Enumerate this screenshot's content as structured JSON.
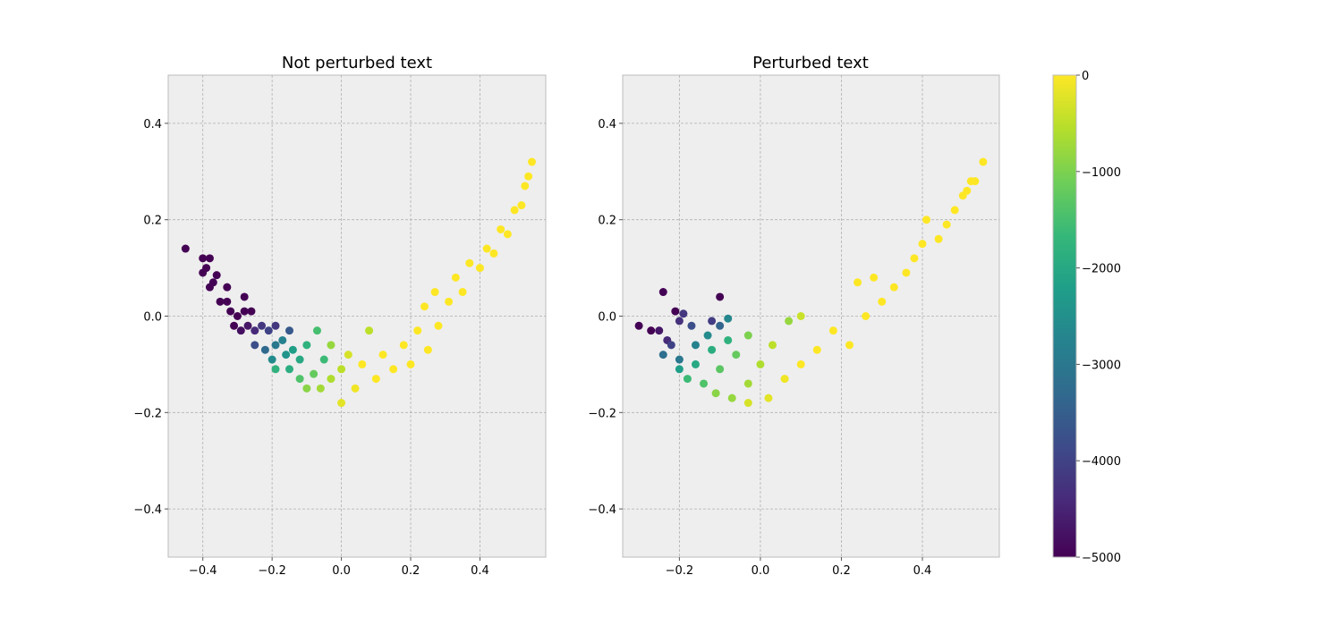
{
  "chart_data": [
    {
      "type": "scatter",
      "title": "Not perturbed text",
      "xlabel": "",
      "ylabel": "",
      "xlim": [
        -0.5,
        0.59
      ],
      "ylim": [
        -0.5,
        0.5
      ],
      "xticks": [
        -0.4,
        -0.2,
        0.0,
        0.2,
        0.4
      ],
      "yticks": [
        -0.4,
        -0.2,
        0.0,
        0.2,
        0.4
      ],
      "xtick_labels": [
        "−0.4",
        "−0.2",
        "0.0",
        "0.2",
        "0.4"
      ],
      "ytick_labels": [
        "−0.4",
        "−0.2",
        "0.0",
        "0.2",
        "0.4"
      ],
      "grid": true,
      "colormap": "viridis",
      "color_range": [
        -5000,
        0
      ],
      "points": [
        {
          "x": -0.45,
          "y": 0.14,
          "c": -5000
        },
        {
          "x": -0.4,
          "y": 0.12,
          "c": -5000
        },
        {
          "x": -0.38,
          "y": 0.12,
          "c": -5000
        },
        {
          "x": -0.39,
          "y": 0.1,
          "c": -5000
        },
        {
          "x": -0.4,
          "y": 0.09,
          "c": -5000
        },
        {
          "x": -0.36,
          "y": 0.085,
          "c": -5000
        },
        {
          "x": -0.37,
          "y": 0.07,
          "c": -5000
        },
        {
          "x": -0.38,
          "y": 0.06,
          "c": -5000
        },
        {
          "x": -0.33,
          "y": 0.06,
          "c": -5000
        },
        {
          "x": -0.35,
          "y": 0.03,
          "c": -5000
        },
        {
          "x": -0.33,
          "y": 0.03,
          "c": -5000
        },
        {
          "x": -0.28,
          "y": 0.04,
          "c": -5000
        },
        {
          "x": -0.32,
          "y": 0.01,
          "c": -5000
        },
        {
          "x": -0.3,
          "y": 0.0,
          "c": -5000
        },
        {
          "x": -0.28,
          "y": 0.01,
          "c": -5000
        },
        {
          "x": -0.26,
          "y": 0.01,
          "c": -5000
        },
        {
          "x": -0.31,
          "y": -0.02,
          "c": -5000
        },
        {
          "x": -0.29,
          "y": -0.03,
          "c": -4800
        },
        {
          "x": -0.27,
          "y": -0.02,
          "c": -4700
        },
        {
          "x": -0.25,
          "y": -0.03,
          "c": -4400
        },
        {
          "x": -0.23,
          "y": -0.02,
          "c": -4200
        },
        {
          "x": -0.21,
          "y": -0.03,
          "c": -4000
        },
        {
          "x": -0.19,
          "y": -0.02,
          "c": -4200
        },
        {
          "x": -0.15,
          "y": -0.03,
          "c": -3600
        },
        {
          "x": -0.25,
          "y": -0.06,
          "c": -3800
        },
        {
          "x": -0.22,
          "y": -0.07,
          "c": -3300
        },
        {
          "x": -0.19,
          "y": -0.06,
          "c": -3000
        },
        {
          "x": -0.17,
          "y": -0.05,
          "c": -2800
        },
        {
          "x": -0.2,
          "y": -0.09,
          "c": -2600
        },
        {
          "x": -0.16,
          "y": -0.08,
          "c": -2400
        },
        {
          "x": -0.14,
          "y": -0.07,
          "c": -2200
        },
        {
          "x": -0.19,
          "y": -0.11,
          "c": -1800
        },
        {
          "x": -0.15,
          "y": -0.11,
          "c": -1900
        },
        {
          "x": -0.12,
          "y": -0.09,
          "c": -2000
        },
        {
          "x": -0.1,
          "y": -0.06,
          "c": -1800
        },
        {
          "x": -0.07,
          "y": -0.03,
          "c": -1500
        },
        {
          "x": -0.12,
          "y": -0.13,
          "c": -1400
        },
        {
          "x": -0.08,
          "y": -0.12,
          "c": -1200
        },
        {
          "x": -0.05,
          "y": -0.09,
          "c": -1600
        },
        {
          "x": -0.03,
          "y": -0.06,
          "c": -800
        },
        {
          "x": -0.1,
          "y": -0.15,
          "c": -900
        },
        {
          "x": -0.06,
          "y": -0.15,
          "c": -700
        },
        {
          "x": -0.03,
          "y": -0.13,
          "c": -600
        },
        {
          "x": 0.0,
          "y": -0.11,
          "c": -500
        },
        {
          "x": 0.02,
          "y": -0.08,
          "c": -300
        },
        {
          "x": 0.0,
          "y": -0.18,
          "c": -200
        },
        {
          "x": 0.04,
          "y": -0.15,
          "c": -100
        },
        {
          "x": 0.08,
          "y": -0.03,
          "c": -500
        },
        {
          "x": 0.06,
          "y": -0.1,
          "c": 0
        },
        {
          "x": 0.1,
          "y": -0.13,
          "c": 0
        },
        {
          "x": 0.12,
          "y": -0.08,
          "c": 0
        },
        {
          "x": 0.15,
          "y": -0.11,
          "c": 0
        },
        {
          "x": 0.18,
          "y": -0.06,
          "c": 0
        },
        {
          "x": 0.2,
          "y": -0.1,
          "c": 0
        },
        {
          "x": 0.22,
          "y": -0.03,
          "c": 0
        },
        {
          "x": 0.25,
          "y": -0.07,
          "c": 0
        },
        {
          "x": 0.24,
          "y": 0.02,
          "c": 0
        },
        {
          "x": 0.28,
          "y": -0.02,
          "c": 0
        },
        {
          "x": 0.27,
          "y": 0.05,
          "c": 0
        },
        {
          "x": 0.31,
          "y": 0.03,
          "c": 0
        },
        {
          "x": 0.33,
          "y": 0.08,
          "c": 0
        },
        {
          "x": 0.35,
          "y": 0.05,
          "c": 0
        },
        {
          "x": 0.37,
          "y": 0.11,
          "c": 0
        },
        {
          "x": 0.4,
          "y": 0.1,
          "c": 0
        },
        {
          "x": 0.42,
          "y": 0.14,
          "c": 0
        },
        {
          "x": 0.44,
          "y": 0.13,
          "c": 0
        },
        {
          "x": 0.46,
          "y": 0.18,
          "c": 0
        },
        {
          "x": 0.48,
          "y": 0.17,
          "c": 0
        },
        {
          "x": 0.5,
          "y": 0.22,
          "c": 0
        },
        {
          "x": 0.52,
          "y": 0.23,
          "c": 0
        },
        {
          "x": 0.53,
          "y": 0.27,
          "c": 0
        },
        {
          "x": 0.54,
          "y": 0.29,
          "c": 0
        },
        {
          "x": 0.55,
          "y": 0.32,
          "c": 0
        }
      ]
    },
    {
      "type": "scatter",
      "title": "Perturbed text",
      "xlabel": "",
      "ylabel": "",
      "xlim": [
        -0.34,
        0.59
      ],
      "ylim": [
        -0.5,
        0.5
      ],
      "xticks": [
        -0.2,
        0.0,
        0.2,
        0.4
      ],
      "yticks": [
        -0.4,
        -0.2,
        0.0,
        0.2,
        0.4
      ],
      "xtick_labels": [
        "−0.2",
        "0.0",
        "0.2",
        "0.4"
      ],
      "ytick_labels": [
        "−0.4",
        "−0.2",
        "0.0",
        "0.2",
        "0.4"
      ],
      "grid": true,
      "colormap": "viridis",
      "color_range": [
        -5000,
        0
      ],
      "points": [
        {
          "x": -0.3,
          "y": -0.02,
          "c": -5000
        },
        {
          "x": -0.27,
          "y": -0.03,
          "c": -5000
        },
        {
          "x": -0.24,
          "y": 0.05,
          "c": -5000
        },
        {
          "x": -0.21,
          "y": 0.01,
          "c": -5000
        },
        {
          "x": -0.1,
          "y": 0.04,
          "c": -5000
        },
        {
          "x": -0.25,
          "y": -0.03,
          "c": -4700
        },
        {
          "x": -0.23,
          "y": -0.05,
          "c": -4400
        },
        {
          "x": -0.2,
          "y": -0.01,
          "c": -4300
        },
        {
          "x": -0.19,
          "y": 0.005,
          "c": -4200
        },
        {
          "x": -0.22,
          "y": -0.06,
          "c": -4000
        },
        {
          "x": -0.17,
          "y": -0.02,
          "c": -3800
        },
        {
          "x": -0.12,
          "y": -0.01,
          "c": -4100
        },
        {
          "x": -0.24,
          "y": -0.08,
          "c": -3200
        },
        {
          "x": -0.2,
          "y": -0.09,
          "c": -3000
        },
        {
          "x": -0.16,
          "y": -0.06,
          "c": -2800
        },
        {
          "x": -0.13,
          "y": -0.04,
          "c": -2600
        },
        {
          "x": -0.1,
          "y": -0.02,
          "c": -3400
        },
        {
          "x": -0.08,
          "y": -0.005,
          "c": -2700
        },
        {
          "x": -0.2,
          "y": -0.11,
          "c": -2200
        },
        {
          "x": -0.16,
          "y": -0.1,
          "c": -2000
        },
        {
          "x": -0.12,
          "y": -0.07,
          "c": -1900
        },
        {
          "x": -0.08,
          "y": -0.05,
          "c": -1800
        },
        {
          "x": -0.18,
          "y": -0.13,
          "c": -1600
        },
        {
          "x": -0.14,
          "y": -0.14,
          "c": -1400
        },
        {
          "x": -0.1,
          "y": -0.11,
          "c": -1300
        },
        {
          "x": -0.06,
          "y": -0.08,
          "c": -1200
        },
        {
          "x": -0.03,
          "y": -0.04,
          "c": -1000
        },
        {
          "x": -0.11,
          "y": -0.16,
          "c": -900
        },
        {
          "x": -0.07,
          "y": -0.17,
          "c": -800
        },
        {
          "x": -0.03,
          "y": -0.14,
          "c": -700
        },
        {
          "x": 0.0,
          "y": -0.1,
          "c": -600
        },
        {
          "x": 0.03,
          "y": -0.06,
          "c": -500
        },
        {
          "x": 0.07,
          "y": -0.01,
          "c": -800
        },
        {
          "x": 0.1,
          "y": 0.0,
          "c": -400
        },
        {
          "x": -0.03,
          "y": -0.18,
          "c": -300
        },
        {
          "x": 0.02,
          "y": -0.17,
          "c": -200
        },
        {
          "x": 0.06,
          "y": -0.13,
          "c": -100
        },
        {
          "x": 0.1,
          "y": -0.1,
          "c": 0
        },
        {
          "x": 0.14,
          "y": -0.07,
          "c": 0
        },
        {
          "x": 0.18,
          "y": -0.03,
          "c": 0
        },
        {
          "x": 0.22,
          "y": -0.06,
          "c": 0
        },
        {
          "x": 0.24,
          "y": 0.07,
          "c": 0
        },
        {
          "x": 0.26,
          "y": 0.0,
          "c": 0
        },
        {
          "x": 0.28,
          "y": 0.08,
          "c": 0
        },
        {
          "x": 0.3,
          "y": 0.03,
          "c": 0
        },
        {
          "x": 0.33,
          "y": 0.06,
          "c": 0
        },
        {
          "x": 0.36,
          "y": 0.09,
          "c": 0
        },
        {
          "x": 0.38,
          "y": 0.12,
          "c": 0
        },
        {
          "x": 0.4,
          "y": 0.15,
          "c": 0
        },
        {
          "x": 0.41,
          "y": 0.2,
          "c": 0
        },
        {
          "x": 0.44,
          "y": 0.16,
          "c": 0
        },
        {
          "x": 0.46,
          "y": 0.19,
          "c": 0
        },
        {
          "x": 0.48,
          "y": 0.22,
          "c": 0
        },
        {
          "x": 0.5,
          "y": 0.25,
          "c": 0
        },
        {
          "x": 0.51,
          "y": 0.26,
          "c": 0
        },
        {
          "x": 0.52,
          "y": 0.28,
          "c": 0
        },
        {
          "x": 0.53,
          "y": 0.28,
          "c": 0
        },
        {
          "x": 0.55,
          "y": 0.32,
          "c": 0
        }
      ]
    }
  ],
  "colorbar": {
    "colormap": "viridis",
    "range": [
      -5000,
      0
    ],
    "ticks": [
      0,
      -1000,
      -2000,
      -3000,
      -4000,
      -5000
    ],
    "tick_labels": [
      "0",
      "−1000",
      "−2000",
      "−3000",
      "−4000",
      "−5000"
    ],
    "colors": [
      "#440154",
      "#482878",
      "#3e4989",
      "#31688e",
      "#26828e",
      "#1f9e89",
      "#35b779",
      "#6ece58",
      "#b5de2b",
      "#fde725"
    ]
  }
}
